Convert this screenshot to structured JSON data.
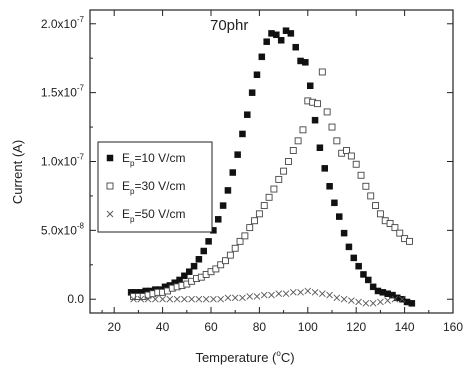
{
  "chart_data": {
    "type": "scatter",
    "annotation": "70phr",
    "xlabel": "Temperature (",
    "xlabel_unit_sup": "o",
    "xlabel_unit": "C)",
    "ylabel": "Current (A)",
    "xlim": [
      10,
      160
    ],
    "ylim": [
      -1e-08,
      2.1e-07
    ],
    "x_ticks": [
      20,
      40,
      60,
      80,
      100,
      120,
      140,
      160
    ],
    "x_tick_labels": [
      "20",
      "40",
      "60",
      "80",
      "100",
      "120",
      "140",
      "160"
    ],
    "y_ticks": [
      0,
      5e-08,
      1e-07,
      1.5e-07,
      2e-07
    ],
    "y_tick_labels": [
      {
        "base": "0.0",
        "exp": ""
      },
      {
        "base": "5.0x10",
        "exp": "-8"
      },
      {
        "base": "1.0x10",
        "exp": "-7"
      },
      {
        "base": "1.5x10",
        "exp": "-7"
      },
      {
        "base": "2.0x10",
        "exp": "-7"
      }
    ],
    "grid": false,
    "legend_position": "center-left",
    "series": [
      {
        "name": "Ep=10 V/cm",
        "legend_main": "E",
        "legend_sub": "p",
        "legend_rest": "=10 V/cm",
        "marker": "filled-square",
        "color": "#111111",
        "x": [
          27,
          29,
          31,
          33,
          35,
          37,
          39,
          41,
          43,
          45,
          47,
          49,
          51,
          53,
          55,
          57,
          59,
          61,
          63,
          65,
          67,
          69,
          71,
          73,
          75,
          77,
          79,
          81,
          83,
          85,
          87,
          89,
          91,
          93,
          95,
          97,
          99,
          101,
          103,
          105,
          107,
          109,
          111,
          113,
          115,
          117,
          119,
          121,
          123,
          125,
          127,
          129,
          131,
          133,
          135,
          137,
          139,
          141,
          143
        ],
        "y": [
          5e-09,
          5e-09,
          5e-09,
          6e-09,
          6e-09,
          7e-09,
          7e-09,
          9e-09,
          1e-08,
          1.2e-08,
          1.4e-08,
          1.7e-08,
          2e-08,
          2.4e-08,
          2.9e-08,
          3.5e-08,
          4.2e-08,
          5e-08,
          5.8e-08,
          6.8e-08,
          7.9e-08,
          9.2e-08,
          1.05e-07,
          1.2e-07,
          1.34e-07,
          1.5e-07,
          1.63e-07,
          1.76e-07,
          1.87e-07,
          1.93e-07,
          1.92e-07,
          1.88e-07,
          1.95e-07,
          1.93e-07,
          1.83e-07,
          1.73e-07,
          1.72e-07,
          1.55e-07,
          1.3e-07,
          1.1e-07,
          9.5e-08,
          8.2e-08,
          7e-08,
          6e-08,
          4.8e-08,
          3.8e-08,
          3e-08,
          2.4e-08,
          1.8e-08,
          1.4e-08,
          9e-09,
          6e-09,
          5e-09,
          4e-09,
          3e-09,
          1e-09,
          0.0,
          -2e-09,
          -3e-09
        ]
      },
      {
        "name": "Ep=30 V/cm",
        "legend_main": "E",
        "legend_sub": "p",
        "legend_rest": "=30 V/cm",
        "marker": "open-square",
        "color": "#444444",
        "x": [
          28,
          30,
          32,
          34,
          36,
          38,
          40,
          42,
          44,
          46,
          48,
          50,
          52,
          54,
          56,
          58,
          60,
          62,
          64,
          66,
          68,
          70,
          72,
          74,
          76,
          78,
          80,
          82,
          84,
          86,
          88,
          90,
          92,
          94,
          96,
          98,
          100,
          102,
          104,
          106,
          108,
          110,
          112,
          114,
          116,
          118,
          120,
          122,
          124,
          126,
          128,
          130,
          132,
          134,
          136,
          138,
          140,
          142
        ],
        "y": [
          2e-09,
          2e-09,
          2e-09,
          3e-09,
          4e-09,
          5e-09,
          5e-09,
          6e-09,
          8e-09,
          9e-09,
          1e-08,
          1.1e-08,
          1.3e-08,
          1.5e-08,
          1.6e-08,
          1.8e-08,
          2e-08,
          2.2e-08,
          2.5e-08,
          2.8e-08,
          3.2e-08,
          3.7e-08,
          4.2e-08,
          4.6e-08,
          5.2e-08,
          5.7e-08,
          6.2e-08,
          6.8e-08,
          7.4e-08,
          8e-08,
          8.7e-08,
          9.3e-08,
          1e-07,
          1.08e-07,
          1.15e-07,
          1.23e-07,
          1.44e-07,
          1.43e-07,
          1.42e-07,
          1.65e-07,
          1.36e-07,
          1.25e-07,
          1.15e-07,
          1.06e-07,
          1.08e-07,
          1.04e-07,
          9.8e-08,
          9e-08,
          8.2e-08,
          7.5e-08,
          6.8e-08,
          6.2e-08,
          5.7e-08,
          5.5e-08,
          5.2e-08,
          4.8e-08,
          4.4e-08,
          4.2e-08
        ]
      },
      {
        "name": "Ep=50 V/cm",
        "legend_main": "E",
        "legend_sub": "p",
        "legend_rest": "=50 V/cm",
        "marker": "cross",
        "color": "#555555",
        "x": [
          28,
          31,
          34,
          37,
          40,
          43,
          46,
          49,
          52,
          55,
          58,
          61,
          64,
          67,
          70,
          73,
          76,
          79,
          82,
          85,
          88,
          91,
          94,
          97,
          100,
          103,
          106,
          109,
          112,
          115,
          118,
          121,
          124,
          127,
          130,
          133,
          136,
          139
        ],
        "y": [
          0.0,
          0.0,
          0.0,
          0.0,
          0.0,
          0.0,
          0.0,
          0.0,
          0.0,
          0.0,
          0.0,
          0.0,
          0.0,
          1e-09,
          1e-09,
          1e-09,
          2e-09,
          2e-09,
          3e-09,
          3e-09,
          4e-09,
          4e-09,
          5e-09,
          5e-09,
          6e-09,
          5e-09,
          4e-09,
          3e-09,
          1e-09,
          0.0,
          -1e-09,
          -2e-09,
          -3e-09,
          -3e-09,
          -2e-09,
          -1e-09,
          0.0,
          0.0
        ]
      }
    ]
  }
}
